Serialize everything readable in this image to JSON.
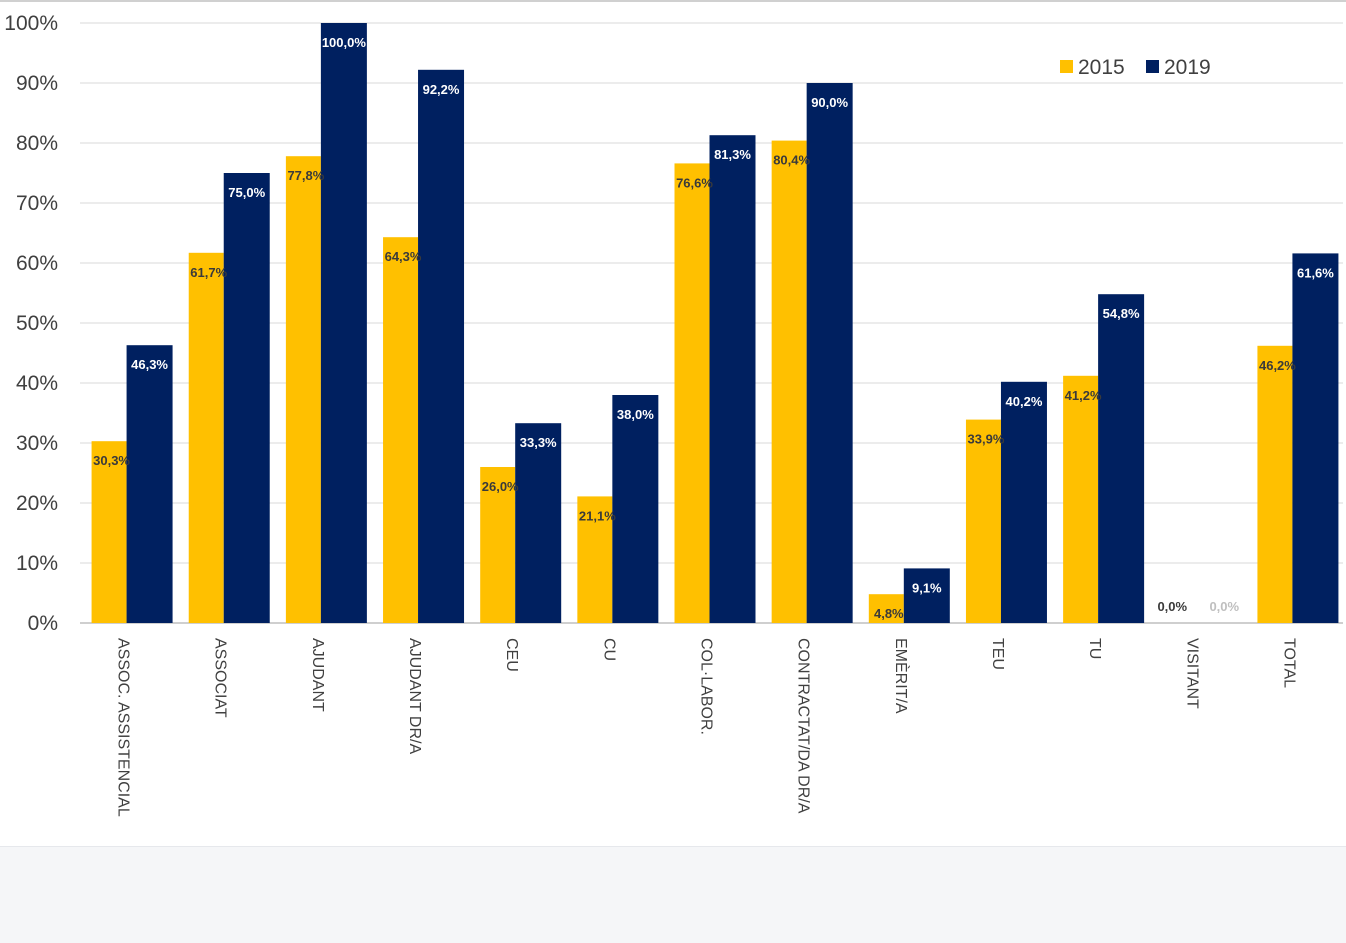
{
  "chart_data": {
    "type": "bar",
    "title": "",
    "xlabel": "",
    "ylabel": "",
    "ylim": [
      0,
      100
    ],
    "y_ticks": [
      "0%",
      "10%",
      "20%",
      "30%",
      "40%",
      "50%",
      "60%",
      "70%",
      "80%",
      "90%",
      "100%"
    ],
    "grid": true,
    "legend_position": "top-right",
    "categories": [
      "ASSOC. ASSISTENCIAL",
      "ASSOCIAT",
      "AJUDANT",
      "AJUDANT DR/A",
      "CEU",
      "CU",
      "COL·LABOR.",
      "CONTRACTAT/DA DR/A",
      "EMÈRIT/A",
      "TEU",
      "TU",
      "VISITANT",
      "TOTAL"
    ],
    "series": [
      {
        "name": "2015",
        "color": "#FFC000",
        "label_color": "#3a3a3a",
        "values": [
          30.3,
          61.7,
          77.8,
          64.3,
          26.0,
          21.1,
          76.6,
          80.4,
          4.8,
          33.9,
          41.2,
          0.0,
          46.2
        ],
        "labels": [
          "30,3%",
          "61,7%",
          "77,8%",
          "64,3%",
          "26,0%",
          "21,1%",
          "76,6%",
          "80,4%",
          "4,8%",
          "33,9%",
          "41,2%",
          "0,0%",
          "46,2%"
        ]
      },
      {
        "name": "2019",
        "color": "#002060",
        "label_color": "#ffffff",
        "values": [
          46.3,
          75.0,
          100.0,
          92.2,
          33.3,
          38.0,
          81.3,
          90.0,
          9.1,
          40.2,
          54.8,
          0.0,
          61.6
        ],
        "labels": [
          "46,3%",
          "75,0%",
          "100,0%",
          "92,2%",
          "33,3%",
          "38,0%",
          "81,3%",
          "90,0%",
          "9,1%",
          "40,2%",
          "54,8%",
          "0,0%",
          "61,6%"
        ]
      }
    ]
  }
}
